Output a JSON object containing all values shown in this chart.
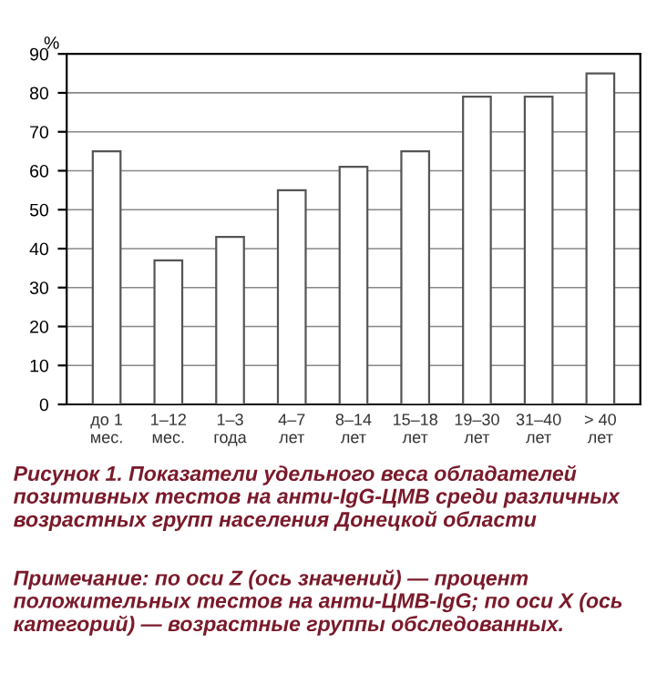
{
  "chart_data": {
    "type": "bar",
    "title": "Рисунок 1. Показатели удельного веса обладателей позитивных тестов на анти-IgG-ЦМВ среди различных возрастных групп населения Донецкой области",
    "ylabel": "%",
    "categories": [
      "до 1\nмес.",
      "1–12\nмес.",
      "1–3\nгода",
      "4–7\nлет",
      "8–14\nлет",
      "15–18\nлет",
      "19–30\nлет",
      "31–40\nлет",
      "> 40\nлет"
    ],
    "series": [
      {
        "color": "#ffffff",
        "values": [
          65,
          37,
          43,
          55,
          61,
          65,
          79,
          79,
          85
        ]
      }
    ],
    "ylim": [
      0,
      90
    ],
    "yticks": [
      0,
      10,
      20,
      30,
      40,
      50,
      60,
      70,
      80,
      90
    ],
    "grid": "y",
    "annotations": [
      "Примечание: по оси Z (ось значений) — процент положительных тестов на анти-ЦМВ-IgG; по оси X (ось категорий) — возрастные группы обследованных."
    ]
  }
}
